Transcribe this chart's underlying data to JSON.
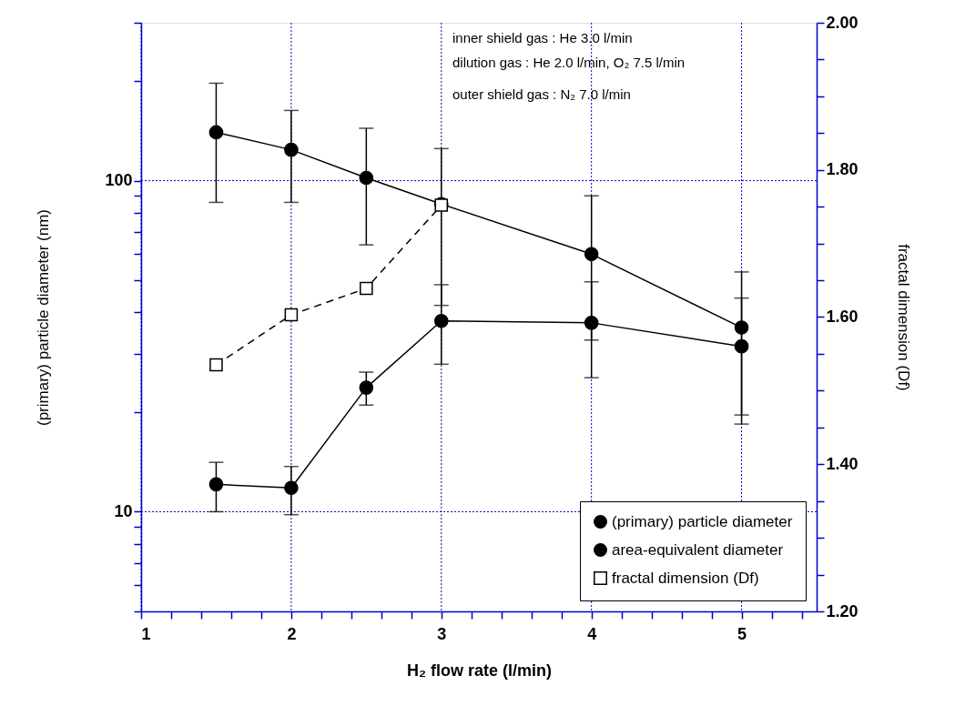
{
  "chart_data": {
    "type": "line",
    "xlabel": "H₂ flow rate (l/min)",
    "ylabel": "(primary) particle diameter (nm)",
    "y2label": "fractal dimension (Df)",
    "x": [
      1.5,
      2,
      2.5,
      3,
      4,
      5
    ],
    "xlim": [
      1,
      5.5
    ],
    "xticks": [
      1,
      {
        "value": 1.2,
        "label": null
      },
      {
        "value": 1.4,
        "label": null
      },
      {
        "value": 1.6,
        "label": null
      },
      {
        "value": 1.8,
        "label": null
      },
      2,
      {
        "value": 2.2,
        "label": null
      },
      {
        "value": 2.4,
        "label": null
      },
      {
        "value": 2.6,
        "label": null
      },
      {
        "value": 2.8,
        "label": null
      },
      3,
      {
        "value": 3.2,
        "label": null
      },
      {
        "value": 3.4,
        "label": null
      },
      {
        "value": 3.6,
        "label": null
      },
      {
        "value": 3.8,
        "label": null
      },
      4,
      {
        "value": 4.2,
        "label": null
      },
      {
        "value": 4.4,
        "label": null
      },
      {
        "value": 4.6,
        "label": null
      },
      {
        "value": 4.8,
        "label": null
      },
      5,
      {
        "value": 5.2,
        "label": null
      },
      {
        "value": 5.4,
        "label": null
      }
    ],
    "ylim": [
      5,
      300
    ],
    "yticks": [
      {
        "value": 5,
        "label": null
      },
      {
        "value": 6,
        "label": null
      },
      {
        "value": 7,
        "label": null
      },
      {
        "value": 8,
        "label": null
      },
      {
        "value": 9,
        "label": null
      },
      10,
      {
        "value": 20,
        "label": null
      },
      {
        "value": 30,
        "label": null
      },
      {
        "value": 40,
        "label": null
      },
      {
        "value": 50,
        "label": null
      },
      {
        "value": 60,
        "label": null
      },
      {
        "value": 70,
        "label": null
      },
      {
        "value": 80,
        "label": null
      },
      {
        "value": 90,
        "label": null
      },
      100,
      {
        "value": 200,
        "label": null
      },
      {
        "value": 300,
        "label": null
      }
    ],
    "log": "y",
    "y2lim": [
      1.2,
      2.0
    ],
    "y2ticks": [
      {
        "value": 1.2,
        "label": "1.20"
      },
      {
        "value": 1.25,
        "label": null
      },
      {
        "value": 1.3,
        "label": null
      },
      {
        "value": 1.35,
        "label": null
      },
      {
        "value": 1.4,
        "label": "1.40"
      },
      {
        "value": 1.45,
        "label": null
      },
      {
        "value": 1.5,
        "label": null
      },
      {
        "value": 1.55,
        "label": null
      },
      {
        "value": 1.6,
        "label": "1.60"
      },
      {
        "value": 1.65,
        "label": null
      },
      {
        "value": 1.7,
        "label": null
      },
      {
        "value": 1.75,
        "label": null
      },
      {
        "value": 1.8,
        "label": "1.80"
      },
      {
        "value": 1.85,
        "label": null
      },
      {
        "value": 1.9,
        "label": null
      },
      {
        "value": 1.95,
        "label": null
      },
      {
        "value": 2.0,
        "label": "2.00"
      }
    ],
    "grid": true,
    "legend": "bottom right",
    "line_style": "solid",
    "annotations": [
      "inner shield gas : He 3.0 l/min",
      "dilution gas : He 2.0 l/min,  O₂ 7.5 l/min",
      "outer shield gas : N₂ 7.0 l/min"
    ],
    "series": [
      {
        "name": "(primary) particle diameter",
        "color": "#000000",
        "marker": "circle",
        "values": [
          12.1,
          11.8,
          23.7,
          37.7,
          37.2,
          31.6
        ],
        "errors": [
          [
            10.0,
            14.1
          ],
          [
            9.8,
            13.7
          ],
          [
            21.0,
            26.4
          ],
          [
            27.9,
            48.5
          ],
          [
            25.4,
            49.5
          ],
          [
            19.6,
            44.2
          ]
        ]
      },
      {
        "name": "area-equivalent diameter",
        "color": "#000000",
        "marker": "circle",
        "values": [
          140,
          124,
          102,
          85,
          60,
          36
        ],
        "errors": [
          [
            86,
            197
          ],
          [
            86,
            163
          ],
          [
            64,
            144
          ],
          [
            42,
            125
          ],
          [
            33,
            90
          ],
          [
            18.4,
            53
          ]
        ]
      },
      {
        "name": "fractal dimension (Df)",
        "color": "#000000",
        "marker": "square",
        "line_style": "dashed",
        "axis": "y2",
        "x": [
          1.5,
          2,
          2.5,
          3
        ],
        "values": [
          1.535,
          1.603,
          1.639,
          1.752
        ]
      }
    ]
  }
}
